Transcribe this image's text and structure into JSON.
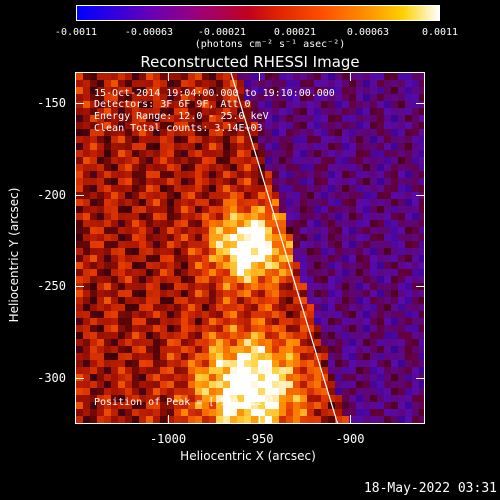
{
  "colorbar": {
    "ticks": [
      "-0.0011",
      "-0.00063",
      "-0.00021",
      "0.00021",
      "0.00063",
      "0.0011"
    ],
    "units": "(photons cm⁻² s⁻¹ asec⁻²)"
  },
  "title": "Reconstructed RHESSI Image",
  "info": {
    "time_range": "15-Oct-2014 19:04:00.000 to 19:10:00.000",
    "detectors": "Detectors: 3F 6F 9F, Att 0",
    "energy": "Energy Range: 12.0 - 25.0 keV",
    "clean": "Clean    Total counts: 3.14E+03",
    "peak": "Position of Peak = [-949,-227]"
  },
  "axes": {
    "xlabel": "Heliocentric X (arcsec)",
    "ylabel": "Heliocentric Y (arcsec)",
    "xticks": [
      "-1000",
      "-950",
      "-900"
    ],
    "yticks": [
      "-150",
      "-200",
      "-250",
      "-300"
    ]
  },
  "timestamp": "18-May-2022 03:31",
  "colors": {
    "background": "#000000",
    "text": "#ffffff",
    "limb": "#ffffff"
  }
}
